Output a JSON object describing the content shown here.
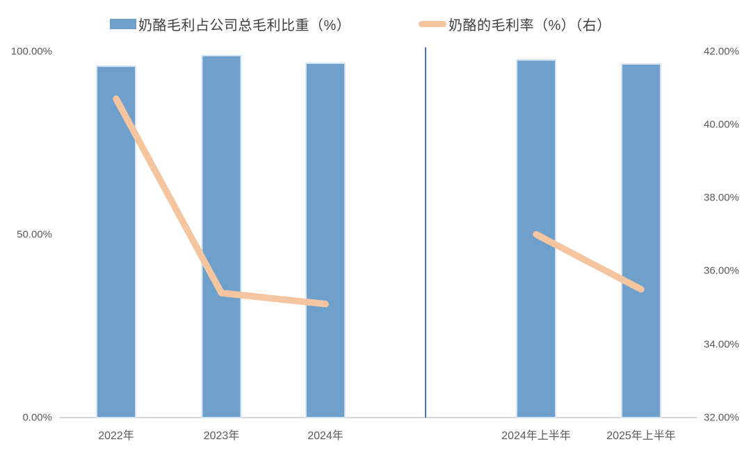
{
  "legend": {
    "items": [
      {
        "label": "奶酪毛利占公司总毛利比重（%）",
        "type": "bar",
        "color": "#6FA0CC"
      },
      {
        "label": "奶酪的毛利率（%）（右）",
        "type": "line",
        "color": "#F5C5A0"
      }
    ]
  },
  "chart_data": {
    "type": "combo-bar-line",
    "categories": [
      "2022年",
      "2023年",
      "2024年",
      "2024年上半年",
      "2025年上半年"
    ],
    "series": [
      {
        "name": "奶酪毛利占公司总毛利比重（%）",
        "type": "bar",
        "axis": "left",
        "color": "#6FA0CC",
        "border_color": "#D6E4F3",
        "values": [
          95.9,
          98.8,
          96.7,
          97.6,
          96.5
        ]
      },
      {
        "name": "奶酪的毛利率（%）（右）",
        "type": "line",
        "axis": "right",
        "color": "#F5C5A0",
        "values": [
          40.7,
          35.4,
          35.1,
          37.0,
          35.5
        ],
        "segments": [
          [
            0,
            1,
            2
          ],
          [
            3,
            4
          ]
        ]
      }
    ],
    "left_axis": {
      "min": 0,
      "max": 100,
      "ticks": [
        "100.00%",
        "50.00%",
        "0.00%"
      ]
    },
    "right_axis": {
      "min": 32,
      "max": 42,
      "ticks": [
        "42.00%",
        "40.00%",
        "38.00%",
        "36.00%",
        "34.00%",
        "32.00%"
      ]
    },
    "divider": {
      "after_category_index": 2,
      "color": "#4472C4"
    },
    "baseline_color": "#D9D9D9",
    "grid": false,
    "legend_position": "top"
  }
}
